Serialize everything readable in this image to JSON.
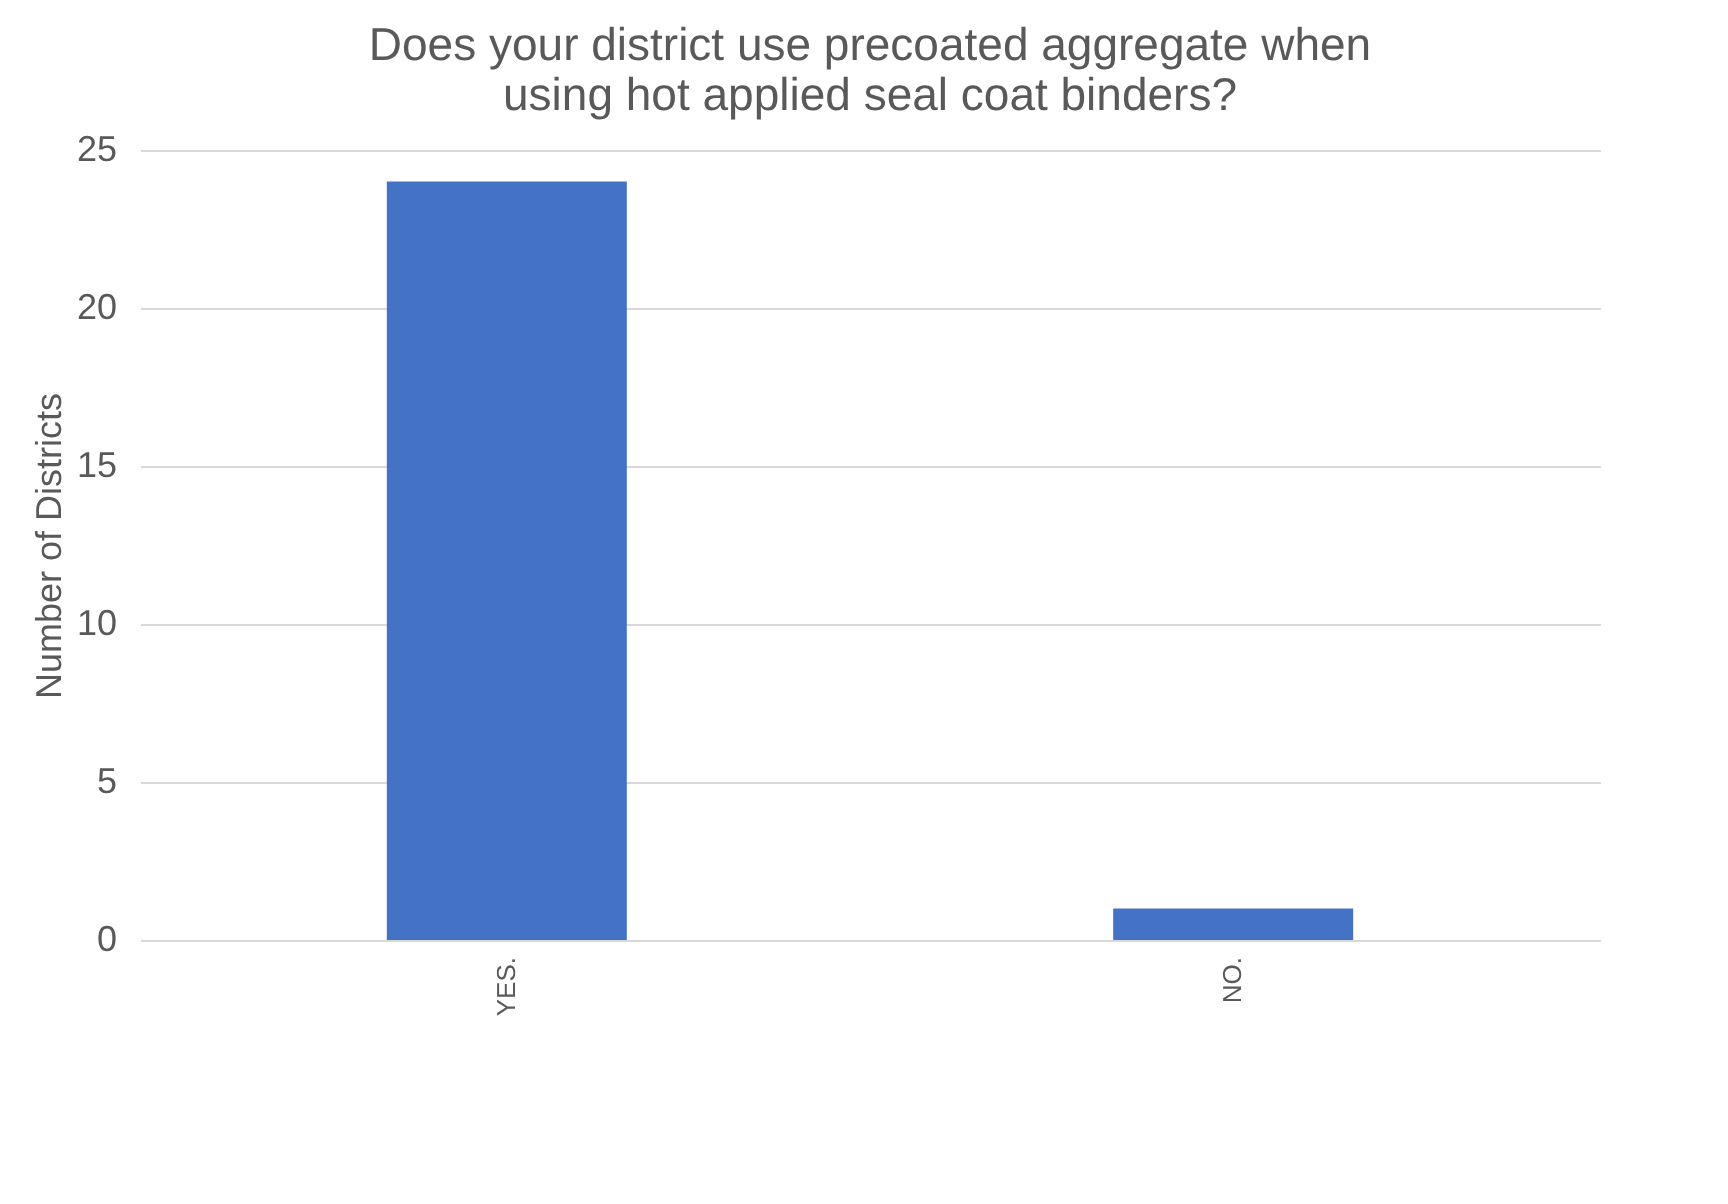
{
  "chart_data": {
    "type": "bar",
    "title": "Does your district use precoated aggregate when using hot applied seal coat binders?",
    "categories": [
      "YES.",
      "NO."
    ],
    "values": [
      24,
      1
    ],
    "color": "#4472c4",
    "ylabel": "Number of Districts",
    "ylim": [
      0,
      25
    ],
    "yticks": [
      0,
      5,
      10,
      15,
      20,
      25
    ],
    "grid": "y"
  }
}
